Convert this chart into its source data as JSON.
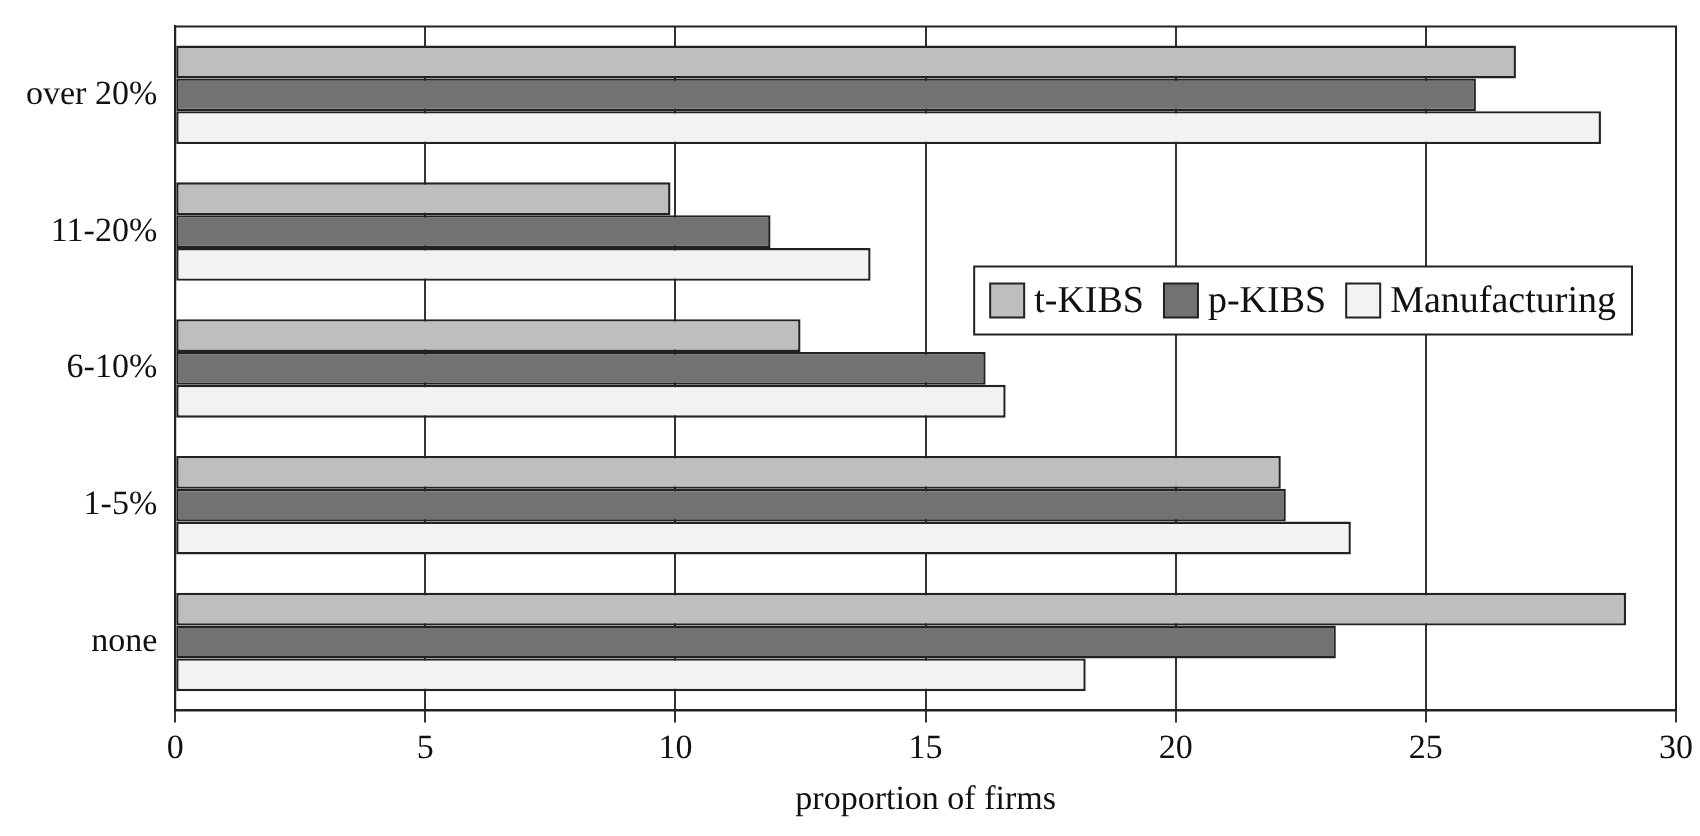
{
  "chart_data": {
    "type": "bar",
    "orientation": "horizontal",
    "xlabel": "proportion of firms",
    "categories": [
      "over 20%",
      "11-20%",
      "6-10%",
      "1-5%",
      "none"
    ],
    "series": [
      {
        "name": "t-KIBS",
        "color": "#bdbec0",
        "values": [
          26.8,
          9.9,
          12.5,
          22.1,
          29.0
        ]
      },
      {
        "name": "p-KIBS",
        "color": "#717274",
        "values": [
          26.0,
          11.9,
          16.2,
          22.2,
          23.2
        ]
      },
      {
        "name": "Manufacturing",
        "color": "#f1f3f2",
        "values": [
          28.5,
          13.9,
          16.6,
          23.5,
          18.2
        ]
      }
    ],
    "xlim": [
      0,
      30
    ],
    "xticks": [
      0,
      5,
      10,
      15,
      20,
      25,
      30
    ],
    "grid": "x",
    "legend": "right"
  }
}
